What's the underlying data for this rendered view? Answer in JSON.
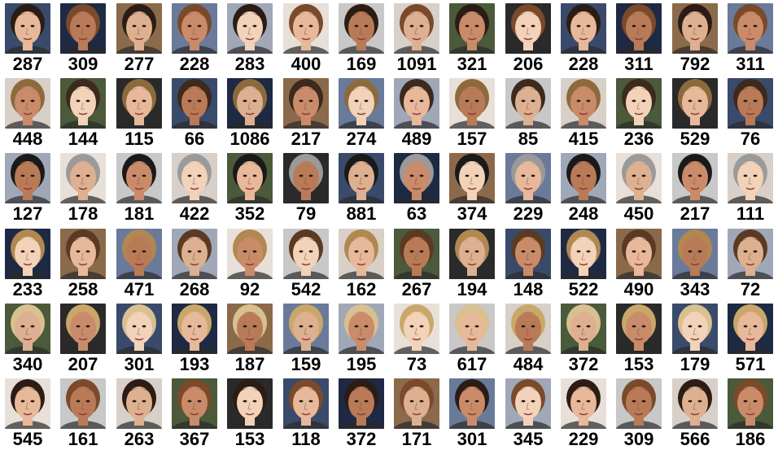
{
  "grid": {
    "rows": 6,
    "columns": 14,
    "labels": [
      [
        "287",
        "309",
        "277",
        "228",
        "283",
        "400",
        "169",
        "1091",
        "321",
        "206",
        "228",
        "311",
        "792",
        "311"
      ],
      [
        "448",
        "144",
        "115",
        "66",
        "1086",
        "217",
        "274",
        "489",
        "157",
        "85",
        "415",
        "236",
        "529",
        "76"
      ],
      [
        "127",
        "178",
        "181",
        "422",
        "352",
        "79",
        "881",
        "63",
        "374",
        "229",
        "248",
        "450",
        "217",
        "111"
      ],
      [
        "233",
        "258",
        "471",
        "268",
        "92",
        "542",
        "162",
        "267",
        "194",
        "148",
        "522",
        "490",
        "343",
        "72"
      ],
      [
        "340",
        "207",
        "301",
        "193",
        "187",
        "159",
        "195",
        "73",
        "617",
        "484",
        "372",
        "153",
        "179",
        "571"
      ],
      [
        "545",
        "161",
        "263",
        "367",
        "153",
        "118",
        "372",
        "171",
        "301",
        "345",
        "229",
        "309",
        "566",
        "186"
      ]
    ]
  },
  "palette": {
    "skin_tones": [
      "#e8b89a",
      "#d9a07c",
      "#c98b6a",
      "#f0c8a8",
      "#b97a58",
      "#8a5a3c",
      "#f2d2b8",
      "#a86c4a",
      "#dcb090",
      "#c4956e"
    ],
    "hair_tones": [
      "#2b1d14",
      "#5a3a22",
      "#8c6a3c",
      "#c9a76a",
      "#1a1a1a",
      "#7a4a2a",
      "#b08850",
      "#3c2a1e",
      "#d8c090",
      "#9a9a9a"
    ],
    "background_tones": [
      "#3a4a6a",
      "#6a7a9a",
      "#c8c8c8",
      "#2a2a2a",
      "#8a6a4a",
      "#e8e0d8",
      "#4a5a3a",
      "#1e2a44",
      "#a0a8b8",
      "#d8d0c8"
    ]
  }
}
